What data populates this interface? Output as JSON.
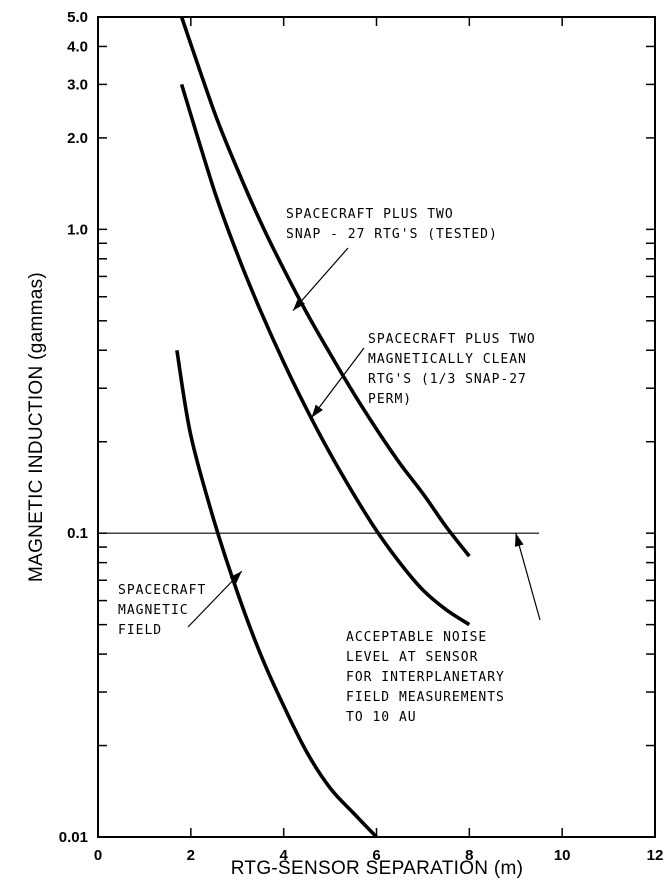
{
  "chart_data": {
    "type": "line",
    "xlabel": "RTG-SENSOR SEPARATION (m)",
    "ylabel": "MAGNETIC INDUCTION (gammas)",
    "xlim": [
      0,
      12
    ],
    "ylim": [
      0.01,
      5.0
    ],
    "yscale": "log",
    "x_ticks": [
      0,
      2,
      4,
      6,
      8,
      10,
      12
    ],
    "x_tick_labels": [
      "0",
      "2",
      "4",
      "6",
      "8",
      "10",
      "12"
    ],
    "y_tick_labels": [
      {
        "value": 0.01,
        "label": "0.01"
      },
      {
        "value": 0.1,
        "label": "0.1"
      },
      {
        "value": 1.0,
        "label": "1.0"
      },
      {
        "value": 2.0,
        "label": "2.0"
      },
      {
        "value": 3.0,
        "label": "3.0"
      },
      {
        "value": 4.0,
        "label": "4.0"
      },
      {
        "value": 5.0,
        "label": "5.0"
      }
    ],
    "y_minor_ticks": [
      0.02,
      0.03,
      0.04,
      0.05,
      0.06,
      0.07,
      0.08,
      0.09,
      0.2,
      0.3,
      0.4,
      0.5,
      0.6,
      0.7,
      0.8,
      0.9
    ],
    "grid": false,
    "series": [
      {
        "id": "snap27",
        "x": [
          1.8,
          2.5,
          3.0,
          3.5,
          4.0,
          4.5,
          5.0,
          5.5,
          6.0,
          6.5,
          7.0,
          7.5,
          8.0
        ],
        "y": [
          5.0,
          2.45,
          1.58,
          1.06,
          0.74,
          0.53,
          0.39,
          0.29,
          0.22,
          0.17,
          0.135,
          0.105,
          0.084
        ]
      },
      {
        "id": "clean_rtg",
        "x": [
          1.8,
          2.5,
          3.0,
          3.5,
          4.0,
          4.5,
          5.0,
          5.5,
          6.0,
          6.5,
          7.0,
          7.5,
          8.0
        ],
        "y": [
          3.0,
          1.35,
          0.83,
          0.54,
          0.365,
          0.255,
          0.183,
          0.135,
          0.102,
          0.08,
          0.065,
          0.056,
          0.05
        ]
      },
      {
        "id": "spacecraft",
        "x": [
          1.7,
          2.0,
          2.5,
          3.0,
          3.5,
          4.0,
          4.5,
          5.0,
          5.5,
          6.0
        ],
        "y": [
          0.4,
          0.21,
          0.11,
          0.064,
          0.04,
          0.027,
          0.019,
          0.0145,
          0.012,
          0.01
        ]
      }
    ],
    "reference_line": {
      "y": 0.1,
      "x_start": 0,
      "x_end": 9.5
    },
    "annotations": [
      {
        "id": "snap27",
        "lines": [
          "SPACECRAFT PLUS TWO",
          "SNAP - 27 RTG'S (TESTED)"
        ],
        "arrow_target": {
          "x": 4.2,
          "y": 0.54
        }
      },
      {
        "id": "clean_rtg",
        "lines": [
          "SPACECRAFT PLUS TWO",
          "MAGNETICALLY CLEAN",
          "RTG'S (1/3 SNAP-27",
          "PERM)"
        ],
        "arrow_target": {
          "x": 4.6,
          "y": 0.24
        }
      },
      {
        "id": "spacecraft",
        "lines": [
          "SPACECRAFT",
          "MAGNETIC",
          "FIELD"
        ],
        "arrow_target": {
          "x": 3.1,
          "y": 0.075
        }
      },
      {
        "id": "noise",
        "lines": [
          "ACCEPTABLE NOISE",
          "LEVEL AT SENSOR",
          "FOR INTERPLANETARY",
          "FIELD MEASUREMENTS",
          "TO 10 AU"
        ],
        "arrow_target": {
          "x": 9.0,
          "y": 0.1
        }
      }
    ]
  }
}
